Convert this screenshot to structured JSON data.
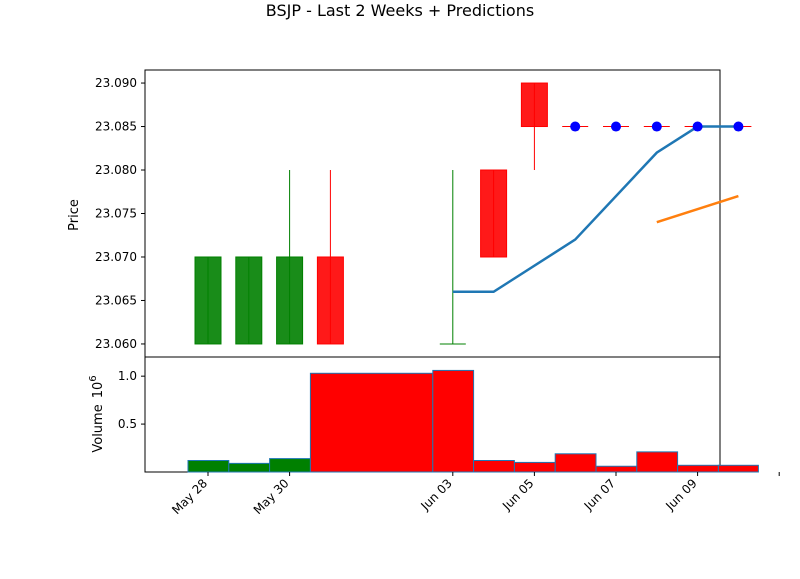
{
  "chart_data": [
    {
      "type": "candlestick",
      "title": "BSJP - Last 2 Weeks + Predictions",
      "ylabel": "Price",
      "ylim": [
        23.0585,
        23.0915
      ],
      "y_ticks": [
        "23.060",
        "23.065",
        "23.070",
        "23.075",
        "23.080",
        "23.085",
        "23.090"
      ],
      "candles": [
        {
          "date": "2024-05-28",
          "open": 23.06,
          "high": 23.07,
          "low": 23.06,
          "close": 23.07
        },
        {
          "date": "2024-05-29",
          "open": 23.06,
          "high": 23.07,
          "low": 23.06,
          "close": 23.07
        },
        {
          "date": "2024-05-30",
          "open": 23.06,
          "high": 23.08,
          "low": 23.06,
          "close": 23.07
        },
        {
          "date": "2024-05-31",
          "open": 23.07,
          "high": 23.08,
          "low": 23.06,
          "close": 23.06
        },
        {
          "date": "2024-06-03",
          "open": 23.06,
          "high": 23.08,
          "low": 23.06,
          "close": 23.06
        },
        {
          "date": "2024-06-04",
          "open": 23.08,
          "high": 23.08,
          "low": 23.07,
          "close": 23.07
        },
        {
          "date": "2024-06-05",
          "open": 23.09,
          "high": 23.09,
          "low": 23.08,
          "close": 23.085
        }
      ],
      "prediction_candles": [
        {
          "date": "2024-06-06",
          "value": 23.085
        },
        {
          "date": "2024-06-07",
          "value": 23.085
        },
        {
          "date": "2024-06-08",
          "value": 23.085
        },
        {
          "date": "2024-06-09",
          "value": 23.085
        },
        {
          "date": "2024-06-10",
          "value": 23.085
        }
      ],
      "series": [
        {
          "color": "#1f77b4",
          "x": [
            "2024-06-03",
            "2024-06-04",
            "2024-06-06",
            "2024-06-08",
            "2024-06-09",
            "2024-06-10"
          ],
          "values": [
            23.066,
            23.066,
            23.072,
            23.082,
            23.085,
            23.085
          ]
        },
        {
          "color": "#ff7f0e",
          "x": [
            "2024-06-08",
            "2024-06-10"
          ],
          "values": [
            23.074,
            23.077
          ]
        }
      ],
      "colors": {
        "up": "#008000",
        "down": "#ff0000",
        "prediction_marker": "#0000ff"
      }
    },
    {
      "type": "bar",
      "ylabel": "Volume",
      "scale_label": "10",
      "scale_exp": "6",
      "y_ticks": [
        "0.5",
        "1.0"
      ],
      "ylim": [
        0,
        1.2
      ],
      "x": [
        "2024-05-28",
        "2024-05-29",
        "2024-05-30",
        "2024-05-31",
        "2024-06-03",
        "2024-06-04",
        "2024-06-05",
        "2024-06-06",
        "2024-06-07",
        "2024-06-08",
        "2024-06-09",
        "2024-06-10"
      ],
      "values": [
        0.12,
        0.09,
        0.14,
        1.03,
        1.06,
        0.12,
        0.1,
        0.19,
        0.06,
        0.21,
        0.07,
        0.07
      ],
      "bar_colors": [
        "green",
        "green",
        "green",
        "red",
        "red",
        "red",
        "red",
        "red",
        "red",
        "red",
        "red",
        "red"
      ],
      "x_ticks": [
        "May 28",
        "May 30",
        "Jun 03",
        "Jun 05",
        "Jun 07",
        "Jun 09"
      ],
      "x_tick_dates": [
        "2024-05-28",
        "2024-05-30",
        "2024-06-03",
        "2024-06-05",
        "2024-06-07",
        "2024-06-09"
      ]
    }
  ]
}
